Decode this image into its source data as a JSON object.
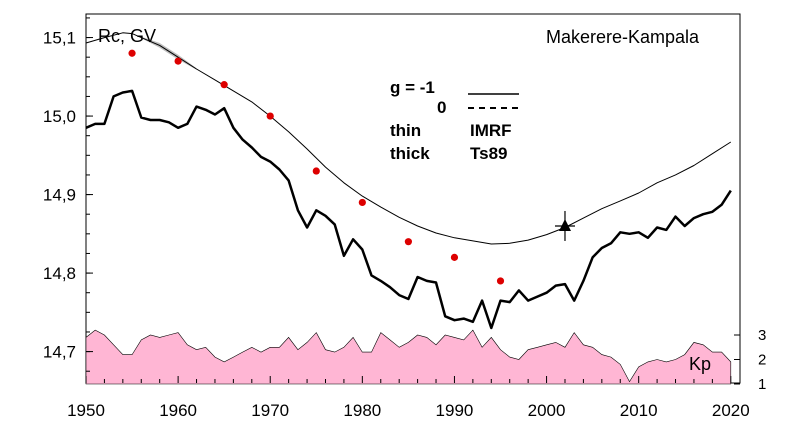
{
  "chart_data": {
    "type": "line",
    "ylabel": "Rc, GV",
    "station": "Makerere-Kampala",
    "xlim": [
      1950,
      2021
    ],
    "ylim": [
      14.66,
      15.13
    ],
    "x_ticks": [
      1950,
      1960,
      1970,
      1980,
      1990,
      2000,
      2010,
      2020
    ],
    "y_ticks": [
      14.7,
      14.8,
      14.9,
      15.0,
      15.1
    ],
    "y_tick_labels": [
      "14,7",
      "14,8",
      "14,9",
      "15,0",
      "15,1"
    ],
    "grid": false,
    "legend": {
      "line1": {
        "g": "g  = -1",
        "style": "solid"
      },
      "line2": {
        "g": "0",
        "style": "dashed"
      },
      "row3": {
        "width": "thin",
        "model": "IMRF"
      },
      "row4": {
        "width": "thick",
        "model": "Ts89"
      }
    },
    "series": [
      {
        "style": "thin",
        "x": [
          1950,
          1952,
          1954,
          1955,
          1956,
          1958,
          1960,
          1962,
          1964,
          1966,
          1968,
          1970,
          1972,
          1974,
          1976,
          1978,
          1980,
          1982,
          1984,
          1986,
          1988,
          1990,
          1992,
          1994,
          1996,
          1998,
          2000,
          2002,
          2004,
          2006,
          2008,
          2010,
          2012,
          2014,
          2016,
          2018,
          2020
        ],
        "y": [
          15.093,
          15.1,
          15.106,
          15.105,
          15.1,
          15.09,
          15.075,
          15.06,
          15.046,
          15.032,
          15.018,
          15.0,
          14.98,
          14.958,
          14.935,
          14.915,
          14.898,
          14.884,
          14.871,
          14.86,
          14.851,
          14.845,
          14.841,
          14.837,
          14.838,
          14.842,
          14.849,
          14.858,
          14.87,
          14.882,
          14.892,
          14.902,
          14.915,
          14.925,
          14.937,
          14.952,
          14.967
        ]
      },
      {
        "style": "thick",
        "x": [
          1950,
          1951,
          1952,
          1953,
          1954,
          1955,
          1956,
          1957,
          1958,
          1959,
          1960,
          1961,
          1962,
          1963,
          1964,
          1965,
          1966,
          1967,
          1968,
          1969,
          1970,
          1971,
          1972,
          1973,
          1974,
          1975,
          1976,
          1977,
          1978,
          1979,
          1980,
          1981,
          1982,
          1983,
          1984,
          1985,
          1986,
          1987,
          1988,
          1989,
          1990,
          1991,
          1992,
          1993,
          1994,
          1995,
          1996,
          1997,
          1998,
          1999,
          2000,
          2001,
          2002,
          2003,
          2004,
          2005,
          2006,
          2007,
          2008,
          2009,
          2010,
          2011,
          2012,
          2013,
          2014,
          2015,
          2016,
          2017,
          2018,
          2019,
          2020
        ],
        "y": [
          14.985,
          14.99,
          14.99,
          15.025,
          15.03,
          15.032,
          14.998,
          14.995,
          14.995,
          14.992,
          14.985,
          14.99,
          15.012,
          15.008,
          15.002,
          15.01,
          14.985,
          14.97,
          14.96,
          14.948,
          14.942,
          14.932,
          14.918,
          14.88,
          14.858,
          14.88,
          14.873,
          14.862,
          14.822,
          14.843,
          14.83,
          14.797,
          14.79,
          14.782,
          14.772,
          14.767,
          14.795,
          14.79,
          14.788,
          14.745,
          14.74,
          14.742,
          14.738,
          14.765,
          14.73,
          14.765,
          14.763,
          14.778,
          14.765,
          14.77,
          14.775,
          14.784,
          14.786,
          14.765,
          14.79,
          14.82,
          14.832,
          14.838,
          14.852,
          14.85,
          14.852,
          14.845,
          14.858,
          14.855,
          14.872,
          14.86,
          14.87,
          14.875,
          14.878,
          14.887,
          14.905
        ]
      }
    ],
    "points": {
      "x": [
        1955,
        1960,
        1965,
        1970,
        1975,
        1980,
        1985,
        1990,
        1995
      ],
      "y": [
        15.08,
        15.07,
        15.04,
        15.0,
        14.93,
        14.89,
        14.84,
        14.82,
        14.79
      ],
      "color": "#dd0000"
    },
    "marker": {
      "x": 2002,
      "y": 14.86
    },
    "kp": {
      "label": "Kp",
      "ticks": [
        1,
        2,
        3
      ],
      "color": "#ffb6d4",
      "x": [
        1950,
        1951,
        1952,
        1953,
        1954,
        1955,
        1956,
        1957,
        1958,
        1959,
        1960,
        1961,
        1962,
        1963,
        1964,
        1965,
        1966,
        1967,
        1968,
        1969,
        1970,
        1971,
        1972,
        1973,
        1974,
        1975,
        1976,
        1977,
        1978,
        1979,
        1980,
        1981,
        1982,
        1983,
        1984,
        1985,
        1986,
        1987,
        1988,
        1989,
        1990,
        1991,
        1992,
        1993,
        1994,
        1995,
        1996,
        1997,
        1998,
        1999,
        2000,
        2001,
        2002,
        2003,
        2004,
        2005,
        2006,
        2007,
        2008,
        2009,
        2010,
        2011,
        2012,
        2013,
        2014,
        2015,
        2016,
        2017,
        2018,
        2019,
        2020
      ],
      "y": [
        2.9,
        3.2,
        3.0,
        2.6,
        2.2,
        2.2,
        2.8,
        3.0,
        2.9,
        3.0,
        3.1,
        2.6,
        2.4,
        2.5,
        2.1,
        1.9,
        2.1,
        2.3,
        2.5,
        2.3,
        2.5,
        2.5,
        2.9,
        2.4,
        2.7,
        3.1,
        2.4,
        2.3,
        2.5,
        2.9,
        2.3,
        2.3,
        3.1,
        2.8,
        2.5,
        2.7,
        3.0,
        2.9,
        2.6,
        3.0,
        2.9,
        2.8,
        3.2,
        2.5,
        2.9,
        2.4,
        2.1,
        2.0,
        2.4,
        2.5,
        2.6,
        2.7,
        2.5,
        3.1,
        2.6,
        2.5,
        2.2,
        2.1,
        1.8,
        1.1,
        1.7,
        1.9,
        2.0,
        1.9,
        2.0,
        2.2,
        2.7,
        2.6,
        2.3,
        2.3,
        1.9
      ]
    }
  }
}
